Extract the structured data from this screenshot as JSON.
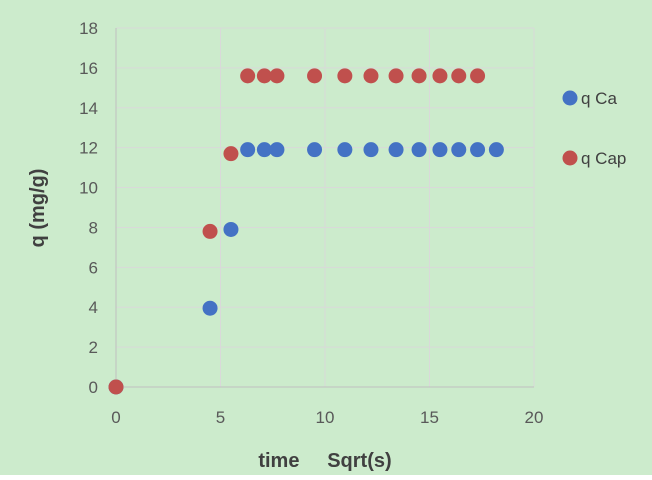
{
  "chart_data": {
    "type": "scatter",
    "title": "",
    "xlabel": "time     Sqrt(s)",
    "ylabel": "q (mg/g)",
    "xlim": [
      0,
      20
    ],
    "ylim": [
      0,
      18
    ],
    "x_ticks": [
      0,
      5,
      10,
      15,
      20
    ],
    "y_ticks": [
      0,
      2,
      4,
      6,
      8,
      10,
      12,
      14,
      16,
      18
    ],
    "grid": true,
    "legend_position": "right",
    "background_color": "#ccebcc",
    "series": [
      {
        "name": "q Ca",
        "color": "#4472c4",
        "points": [
          {
            "x": 0,
            "y": 0
          },
          {
            "x": 4.5,
            "y": 3.95
          },
          {
            "x": 5.5,
            "y": 7.9
          },
          {
            "x": 6.3,
            "y": 11.9
          },
          {
            "x": 7.1,
            "y": 11.9
          },
          {
            "x": 7.7,
            "y": 11.9
          },
          {
            "x": 9.5,
            "y": 11.9
          },
          {
            "x": 10.95,
            "y": 11.9
          },
          {
            "x": 12.2,
            "y": 11.9
          },
          {
            "x": 13.4,
            "y": 11.9
          },
          {
            "x": 14.5,
            "y": 11.9
          },
          {
            "x": 15.5,
            "y": 11.9
          },
          {
            "x": 16.4,
            "y": 11.9
          },
          {
            "x": 17.3,
            "y": 11.9
          },
          {
            "x": 18.2,
            "y": 11.9
          }
        ]
      },
      {
        "name": "q Cap",
        "color": "#c0504d",
        "points": [
          {
            "x": 0,
            "y": 0
          },
          {
            "x": 4.5,
            "y": 7.8
          },
          {
            "x": 5.5,
            "y": 11.7
          },
          {
            "x": 6.3,
            "y": 15.6
          },
          {
            "x": 7.1,
            "y": 15.6
          },
          {
            "x": 7.7,
            "y": 15.6
          },
          {
            "x": 9.5,
            "y": 15.6
          },
          {
            "x": 10.95,
            "y": 15.6
          },
          {
            "x": 12.2,
            "y": 15.6
          },
          {
            "x": 13.4,
            "y": 15.6
          },
          {
            "x": 14.5,
            "y": 15.6
          },
          {
            "x": 15.5,
            "y": 15.6
          },
          {
            "x": 16.4,
            "y": 15.6
          },
          {
            "x": 17.3,
            "y": 15.6
          }
        ]
      }
    ]
  }
}
